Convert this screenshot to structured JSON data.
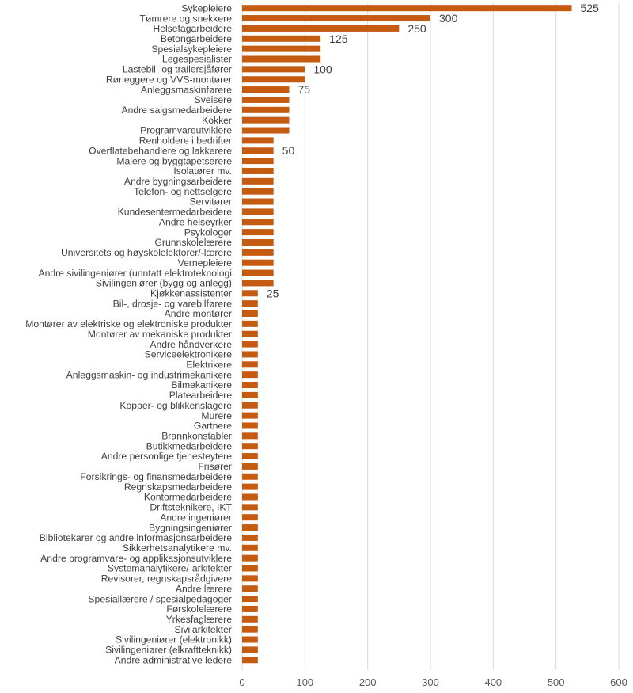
{
  "chart_data": {
    "type": "bar",
    "orientation": "horizontal",
    "title": "",
    "xlabel": "",
    "ylabel": "",
    "xlim": [
      0,
      600
    ],
    "x_ticks": [
      0,
      100,
      200,
      300,
      400,
      500,
      600
    ],
    "grid": "vertical",
    "legend": "none",
    "bar_color": "#C55A11",
    "grid_color": "#d9d9d9",
    "categories": [
      "Sykepleiere",
      "Tømrere og snekkere",
      "Helsefagarbeidere",
      "Betongarbeidere",
      "Spesialsykepleiere",
      "Legespesialister",
      "Lastebil- og trailersjåfører",
      "Rørleggere og VVS-montører",
      "Anleggsmaskinførere",
      "Sveisere",
      "Andre salgsmedarbeidere",
      "Kokker",
      "Programvareutviklere",
      "Renholdere i bedrifter",
      "Overflatebehandlere og lakkerere",
      "Malere og byggtapetserere",
      "Isolatører mv.",
      "Andre bygningsarbeidere",
      "Telefon- og nettselgere",
      "Servitører",
      "Kundesentermedarbeidere",
      "Andre helseyrker",
      "Psykologer",
      "Grunnskolelærere",
      "Universitets   og høyskolelektorer/-lærere",
      "Vernepleiere",
      "Andre sivilingeniører (unntatt elektroteknologi",
      "Sivilingeniører (bygg og anlegg)",
      "Kjøkkenassistenter",
      "Bil-, drosje- og varebilførere",
      "Andre montører",
      "Montører av elektriske og elektroniske produkter",
      "Montører av mekaniske produkter",
      "Andre håndverkere",
      "Serviceelektronikere",
      "Elektrikere",
      "Anleggsmaskin- og industrimekanikere",
      "Bilmekanikere",
      "Platearbeidere",
      "Kopper- og blikkenslagere",
      "Murere",
      "Gartnere",
      "Brannkonstabler",
      "Butikkmedarbeidere",
      "Andre personlige tjenesteytere",
      "Frisører",
      "Forsikrings- og finansmedarbeidere",
      "Regnskapsmedarbeidere",
      "Kontormedarbeidere",
      "Driftsteknikere, IKT",
      "Andre ingeniører",
      "Bygningsingeniører",
      "Bibliotekarer og andre informasjonsarbeidere",
      "Sikkerhetsanalytikere mv.",
      "Andre programvare- og applikasjonsutviklere",
      "Systemanalytikere/-arkitekter",
      "Revisorer, regnskapsrådgivere",
      "Andre lærere",
      "Spesiallærere / spesialpedagoger",
      "Førskolelærere",
      "Yrkesfaglærere",
      "Sivilarkitekter",
      "Sivilingeniører (elektronikk)",
      "Sivilingeniører (elkraftteknikk)",
      "Andre administrative ledere"
    ],
    "values": [
      525,
      300,
      250,
      125,
      125,
      125,
      100,
      100,
      75,
      75,
      75,
      75,
      75,
      50,
      50,
      50,
      50,
      50,
      50,
      50,
      50,
      50,
      50,
      50,
      50,
      50,
      50,
      50,
      25,
      25,
      25,
      25,
      25,
      25,
      25,
      25,
      25,
      25,
      25,
      25,
      25,
      25,
      25,
      25,
      25,
      25,
      25,
      25,
      25,
      25,
      25,
      25,
      25,
      25,
      25,
      25,
      25,
      25,
      25,
      25,
      25,
      25,
      25,
      25,
      25
    ],
    "data_labels": [
      {
        "index": 0,
        "text": "525"
      },
      {
        "index": 1,
        "text": "300"
      },
      {
        "index": 2,
        "text": "250"
      },
      {
        "index": 3,
        "text": "125"
      },
      {
        "index": 6,
        "text": "100"
      },
      {
        "index": 8,
        "text": "75"
      },
      {
        "index": 14,
        "text": "50"
      },
      {
        "index": 28,
        "text": "25"
      }
    ]
  }
}
